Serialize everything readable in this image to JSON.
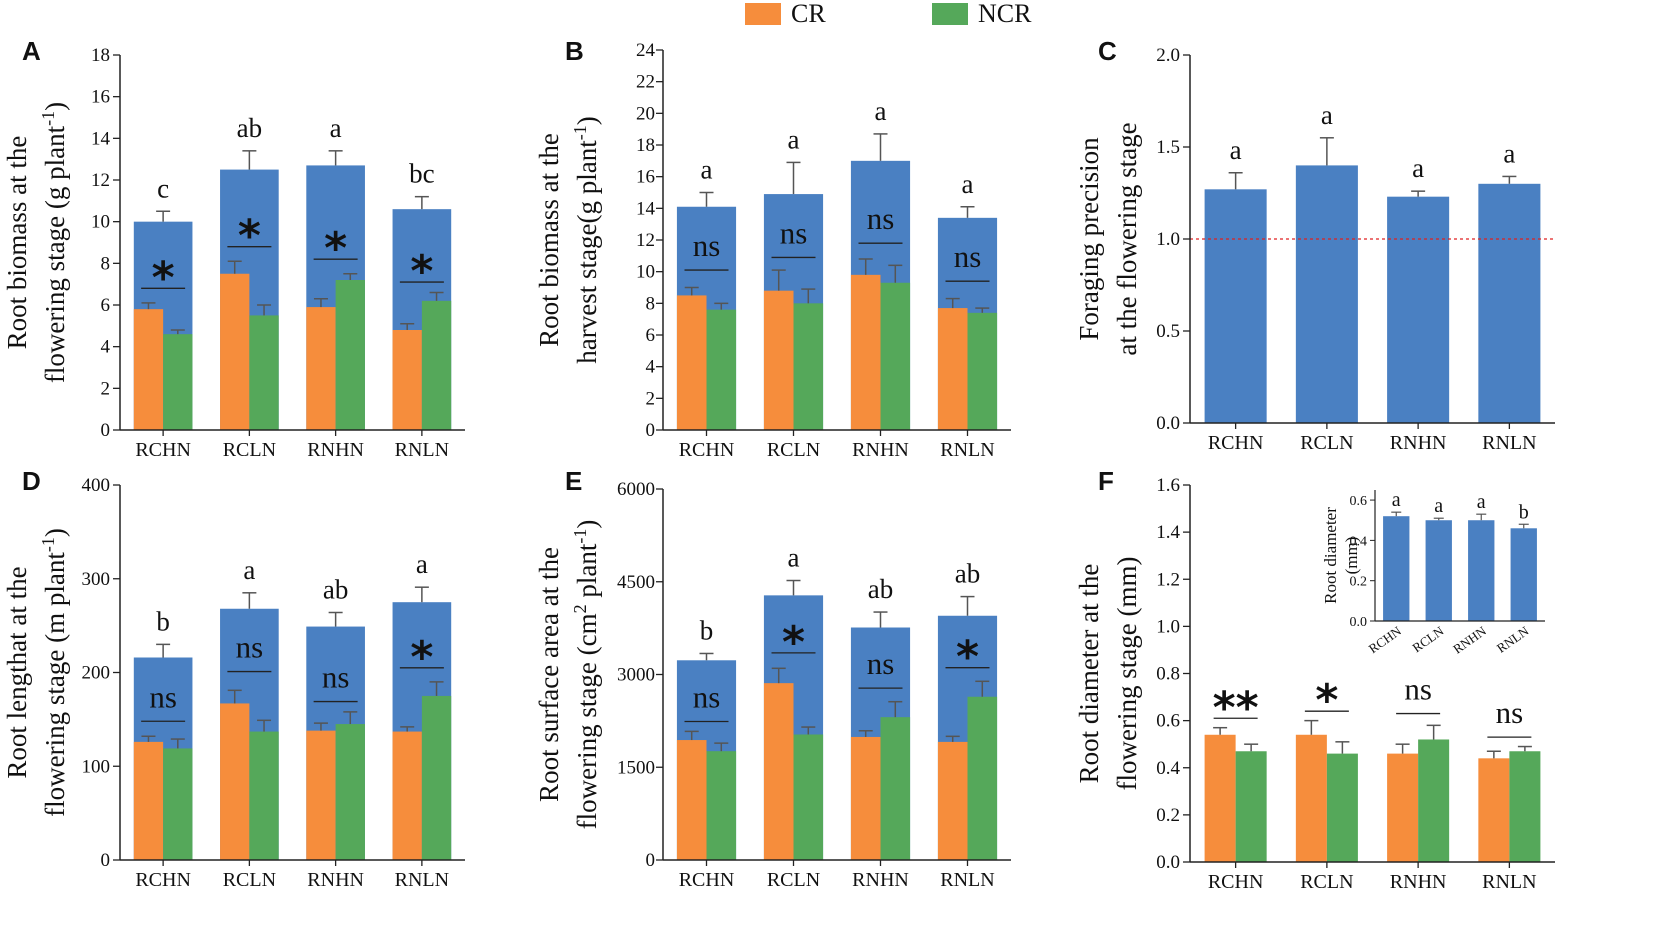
{
  "colors": {
    "cr": "#f68d3c",
    "ncr": "#55a85a",
    "total": "#4a80c2",
    "refline": "#e02020",
    "axis": "#222222",
    "err": "#555555"
  },
  "legend": [
    {
      "key": "cr",
      "label": "CR"
    },
    {
      "key": "ncr",
      "label": "NCR"
    }
  ],
  "chart_data": [
    {
      "id": "A",
      "letter": "A",
      "type": "bar",
      "ylabel": [
        "Root biomass at the",
        "flowering stage  (g plant-1)"
      ],
      "ylabel_sup": {
        "line": 1,
        "base": "flowering stage  (g plant",
        "sup": "-1",
        "tail": ")"
      },
      "ylim": [
        0,
        18
      ],
      "yticks": [
        0,
        2,
        4,
        6,
        8,
        10,
        12,
        14,
        16,
        18
      ],
      "tick_decimals": 0,
      "categories": [
        "RCHN",
        "RCLN",
        "RNHN",
        "RNLN"
      ],
      "total": {
        "values": [
          10.0,
          12.5,
          12.7,
          10.6
        ],
        "errors": [
          0.5,
          0.9,
          0.7,
          0.6
        ]
      },
      "series": [
        {
          "name": "CR",
          "values": [
            5.8,
            7.5,
            5.9,
            4.8
          ],
          "errors": [
            0.3,
            0.6,
            0.4,
            0.3
          ]
        },
        {
          "name": "NCR",
          "values": [
            4.6,
            5.5,
            7.2,
            6.2
          ],
          "errors": [
            0.2,
            0.5,
            0.3,
            0.4
          ]
        }
      ],
      "letters": [
        "c",
        "ab",
        "a",
        "bc"
      ],
      "sig": [
        "*",
        "*",
        "*",
        "*"
      ],
      "sig_line": [
        6.8,
        8.8,
        8.2,
        7.1
      ]
    },
    {
      "id": "B",
      "letter": "B",
      "type": "bar",
      "ylabel": [
        "Root biomass at the",
        "harvest stage(g plant-1)"
      ],
      "ylabel_sup": {
        "line": 1,
        "base": "harvest stage(g plant",
        "sup": "-1",
        "tail": ")"
      },
      "ylim": [
        0,
        24
      ],
      "yticks": [
        0,
        2,
        4,
        6,
        8,
        10,
        12,
        14,
        16,
        18,
        20,
        22,
        24
      ],
      "tick_decimals": 0,
      "categories": [
        "RCHN",
        "RCLN",
        "RNHN",
        "RNLN"
      ],
      "total": {
        "values": [
          14.1,
          14.9,
          17.0,
          13.4
        ],
        "errors": [
          0.9,
          2.0,
          1.7,
          0.7
        ]
      },
      "series": [
        {
          "name": "CR",
          "values": [
            8.5,
            8.8,
            9.8,
            7.7
          ],
          "errors": [
            0.5,
            1.3,
            1.0,
            0.6
          ]
        },
        {
          "name": "NCR",
          "values": [
            7.6,
            8.0,
            9.3,
            7.4
          ],
          "errors": [
            0.4,
            0.9,
            1.1,
            0.3
          ]
        }
      ],
      "letters": [
        "a",
        "a",
        "a",
        "a"
      ],
      "sig": [
        "ns",
        "ns",
        "ns",
        "ns"
      ],
      "sig_line": [
        10.1,
        10.9,
        11.8,
        9.4
      ]
    },
    {
      "id": "C",
      "letter": "C",
      "type": "bar",
      "ylabel": [
        "Foraging precision",
        "at the flowering stage"
      ],
      "ylim": [
        0,
        2.0
      ],
      "yticks": [
        0,
        0.5,
        1.0,
        1.5,
        2.0
      ],
      "tick_decimals": 1,
      "categories": [
        "RCHN",
        "RCLN",
        "RNHN",
        "RNLN"
      ],
      "total": {
        "values": [
          1.27,
          1.4,
          1.23,
          1.3
        ],
        "errors": [
          0.09,
          0.15,
          0.03,
          0.04
        ]
      },
      "letters": [
        "a",
        "a",
        "a",
        "a"
      ],
      "refline": 1.0
    },
    {
      "id": "D",
      "letter": "D",
      "type": "bar",
      "ylabel": [
        "Root lengthat at the",
        "flowering stage  (m plant-1)"
      ],
      "ylabel_sup": {
        "line": 1,
        "base": "flowering stage  (m plant",
        "sup": "-1",
        "tail": ")"
      },
      "ylim": [
        0,
        400
      ],
      "yticks": [
        0,
        100,
        200,
        300,
        400
      ],
      "tick_decimals": 0,
      "categories": [
        "RCHN",
        "RCLN",
        "RNHN",
        "RNLN"
      ],
      "total": {
        "values": [
          216,
          268,
          249,
          275
        ],
        "errors": [
          14,
          17,
          15,
          16
        ]
      },
      "series": [
        {
          "name": "CR",
          "values": [
            126,
            167,
            138,
            137
          ],
          "errors": [
            6,
            14,
            8,
            5
          ]
        },
        {
          "name": "NCR",
          "values": [
            119,
            137,
            145,
            175
          ],
          "errors": [
            10,
            12,
            13,
            15
          ]
        }
      ],
      "letters": [
        "b",
        "a",
        "ab",
        "a"
      ],
      "sig": [
        "ns",
        "ns",
        "ns",
        "*"
      ],
      "sig_line": [
        148,
        201,
        169,
        205
      ]
    },
    {
      "id": "E",
      "letter": "E",
      "type": "bar",
      "ylabel": [
        "Root surface area at the",
        "flowering stage  (cm2 plant-1)"
      ],
      "ylabel_sup": {
        "line": 1,
        "base": "flowering stage  (cm",
        "sup": "2",
        "mid": " plant",
        "sup2": "-1",
        "tail": ")"
      },
      "ylim": [
        0,
        6000
      ],
      "yticks": [
        0,
        1500,
        3000,
        4500,
        6000
      ],
      "tick_decimals": 0,
      "categories": [
        "RCHN",
        "RCLN",
        "RNHN",
        "RNLN"
      ],
      "total": {
        "values": [
          3230,
          4280,
          3760,
          3950
        ],
        "errors": [
          110,
          240,
          250,
          310
        ]
      },
      "series": [
        {
          "name": "CR",
          "values": [
            1940,
            2860,
            1990,
            1910
          ],
          "errors": [
            140,
            240,
            100,
            90
          ]
        },
        {
          "name": "NCR",
          "values": [
            1760,
            2030,
            2310,
            2640
          ],
          "errors": [
            130,
            120,
            250,
            250
          ]
        }
      ],
      "letters": [
        "b",
        "a",
        "ab",
        "ab"
      ],
      "sig": [
        "ns",
        "*",
        "ns",
        "*"
      ],
      "sig_line": [
        2240,
        3350,
        2780,
        3110
      ]
    },
    {
      "id": "F",
      "letter": "F",
      "type": "bar",
      "ylabel": [
        "Root diameter at the",
        "flowering stage  (mm)"
      ],
      "ylim": [
        0,
        1.6
      ],
      "yticks": [
        0,
        0.2,
        0.4,
        0.6,
        0.8,
        1.0,
        1.2,
        1.4,
        1.6
      ],
      "tick_decimals": 1,
      "categories": [
        "RCHN",
        "RCLN",
        "RNHN",
        "RNLN"
      ],
      "series": [
        {
          "name": "CR",
          "values": [
            0.54,
            0.54,
            0.46,
            0.44
          ],
          "errors": [
            0.03,
            0.06,
            0.04,
            0.03
          ]
        },
        {
          "name": "NCR",
          "values": [
            0.47,
            0.46,
            0.52,
            0.47
          ],
          "errors": [
            0.03,
            0.05,
            0.06,
            0.02
          ]
        }
      ],
      "sig": [
        "**",
        "*",
        "ns",
        "ns"
      ],
      "sig_line": [
        0.61,
        0.64,
        0.63,
        0.53
      ],
      "inset": {
        "ylabel": [
          "Root diameter",
          "(mm)"
        ],
        "ylim": [
          0,
          0.65
        ],
        "yticks": [
          0,
          0.2,
          0.4,
          0.6
        ],
        "tick_decimals": 1,
        "categories": [
          "RCHN",
          "RCLN",
          "RNHN",
          "RNLN"
        ],
        "values": [
          0.52,
          0.5,
          0.5,
          0.46
        ],
        "errors": [
          0.02,
          0.01,
          0.03,
          0.02
        ],
        "letters": [
          "a",
          "a",
          "a",
          "b"
        ]
      }
    }
  ]
}
